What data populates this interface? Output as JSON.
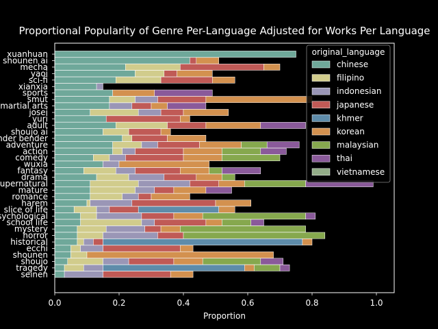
{
  "chart_data": {
    "type": "bar",
    "orientation": "horizontal",
    "stacked": true,
    "title": "Proportional Popularity of Genre Per-Language Adjusted for Works Per Language",
    "xlabel": "Proportion",
    "ylabel": "",
    "xlim": [
      0,
      1.05
    ],
    "xticks": [
      "0.0",
      "0.2",
      "0.4",
      "0.6",
      "0.8",
      "1.0"
    ],
    "grid": false,
    "legend": {
      "title": "original_language",
      "placement": "top-right"
    },
    "categories": [
      "xuanhuan",
      "shounen ai",
      "mecha",
      "yaoi",
      "sci-fi",
      "xianxia",
      "sports",
      "smut",
      "martial arts",
      "josei",
      "yuri",
      "adult",
      "shoujo ai",
      "gender bender",
      "adventure",
      "action",
      "comedy",
      "wuxia",
      "fantasy",
      "drama",
      "supernatural",
      "mature",
      "romance",
      "harem",
      "slice of life",
      "psychological",
      "school life",
      "mystery",
      "horror",
      "historical",
      "ecchi",
      "shounen",
      "shoujo",
      "tragedy",
      "seinen"
    ],
    "series": [
      {
        "name": "chinese",
        "color": "#6fa89a",
        "values": [
          0.75,
          0.42,
          0.22,
          0.25,
          0.19,
          0.13,
          0.18,
          0.17,
          0.17,
          0.11,
          0.16,
          0.19,
          0.15,
          0.21,
          0.18,
          0.18,
          0.12,
          0.15,
          0.09,
          0.13,
          0.11,
          0.11,
          0.11,
          0.1,
          0.06,
          0.08,
          0.08,
          0.07,
          0.07,
          0.07,
          0.05,
          0.05,
          0.04,
          0.03,
          0.03
        ]
      },
      {
        "name": "filipino",
        "color": "#d1cc8c",
        "values": [
          0.0,
          0.0,
          0.17,
          0.09,
          0.14,
          0.0,
          0.0,
          0.08,
          0.0,
          0.15,
          0.0,
          0.16,
          0.08,
          0.03,
          0.09,
          0.03,
          0.05,
          0.0,
          0.1,
          0.1,
          0.15,
          0.14,
          0.1,
          0.01,
          0.07,
          0.05,
          0.19,
          0.09,
          0.08,
          0.02,
          0.03,
          0.05,
          0.11,
          0.06,
          0.0
        ]
      },
      {
        "name": "indonesian",
        "color": "#9a96b6",
        "values": [
          0.0,
          0.0,
          0.0,
          0.0,
          0.0,
          0.02,
          0.0,
          0.07,
          0.07,
          0.07,
          0.0,
          0.0,
          0.0,
          0.0,
          0.05,
          0.04,
          0.05,
          0.05,
          0.06,
          0.11,
          0.16,
          0.06,
          0.05,
          0.13,
          0.04,
          0.14,
          0.04,
          0.12,
          0.17,
          0.03,
          0.07,
          0.0,
          0.08,
          0.06,
          0.12
        ]
      },
      {
        "name": "japanese",
        "color": "#c05a56",
        "values": [
          0.0,
          0.02,
          0.26,
          0.04,
          0.16,
          0.0,
          0.0,
          0.15,
          0.06,
          0.07,
          0.23,
          0.12,
          0.1,
          0.11,
          0.13,
          0.15,
          0.18,
          0.0,
          0.14,
          0.1,
          0.09,
          0.06,
          0.04,
          0.26,
          0.09,
          0.1,
          0.16,
          0.05,
          0.08,
          0.03,
          0.24,
          0.0,
          0.14,
          0.0,
          0.21
        ]
      },
      {
        "name": "khmer",
        "color": "#5e8caa",
        "values": [
          0.0,
          0.0,
          0.0,
          0.0,
          0.0,
          0.0,
          0.0,
          0.0,
          0.0,
          0.0,
          0.0,
          0.0,
          0.0,
          0.0,
          0.0,
          0.0,
          0.0,
          0.0,
          0.0,
          0.0,
          0.0,
          0.0,
          0.0,
          0.0,
          0.25,
          0.0,
          0.0,
          0.0,
          0.0,
          0.62,
          0.0,
          0.0,
          0.0,
          0.44,
          0.0
        ]
      },
      {
        "name": "korean",
        "color": "#d3914f",
        "values": [
          0.0,
          0.07,
          0.05,
          0.11,
          0.07,
          0.0,
          0.13,
          0.33,
          0.05,
          0.14,
          0.03,
          0.17,
          0.03,
          0.12,
          0.13,
          0.12,
          0.12,
          0.28,
          0.09,
          0.08,
          0.08,
          0.1,
          0.12,
          0.11,
          0.05,
          0.09,
          0.05,
          0.06,
          0.0,
          0.03,
          0.04,
          0.58,
          0.09,
          0.03,
          0.07
        ]
      },
      {
        "name": "malaysian",
        "color": "#86a84e",
        "values": [
          0.0,
          0.0,
          0.0,
          0.0,
          0.0,
          0.0,
          0.0,
          0.0,
          0.0,
          0.0,
          0.0,
          0.0,
          0.0,
          0.0,
          0.08,
          0.12,
          0.18,
          0.0,
          0.04,
          0.04,
          0.19,
          0.0,
          0.0,
          0.0,
          0.0,
          0.32,
          0.09,
          0.39,
          0.44,
          0.0,
          0.0,
          0.0,
          0.18,
          0.08,
          0.0
        ]
      },
      {
        "name": "thai",
        "color": "#8a5a9a",
        "values": [
          0.0,
          0.0,
          0.0,
          0.0,
          0.0,
          0.0,
          0.18,
          0.0,
          0.12,
          0.0,
          0.0,
          0.14,
          0.0,
          0.0,
          0.1,
          0.08,
          0.0,
          0.0,
          0.12,
          0.0,
          0.21,
          0.08,
          0.0,
          0.0,
          0.0,
          0.03,
          0.04,
          0.0,
          0.0,
          0.0,
          0.0,
          0.0,
          0.07,
          0.03,
          0.0
        ]
      },
      {
        "name": "vietnamese",
        "color": "#93ad88",
        "values": [
          0.0,
          0.0,
          0.0,
          0.0,
          0.0,
          0.0,
          0.0,
          0.0,
          0.0,
          0.0,
          0.0,
          0.0,
          0.0,
          0.0,
          0.0,
          0.0,
          0.0,
          0.0,
          0.0,
          0.0,
          0.0,
          0.0,
          0.0,
          0.0,
          0.0,
          0.0,
          0.0,
          0.0,
          0.0,
          0.0,
          0.0,
          0.0,
          0.0,
          0.0,
          0.0
        ]
      }
    ]
  }
}
